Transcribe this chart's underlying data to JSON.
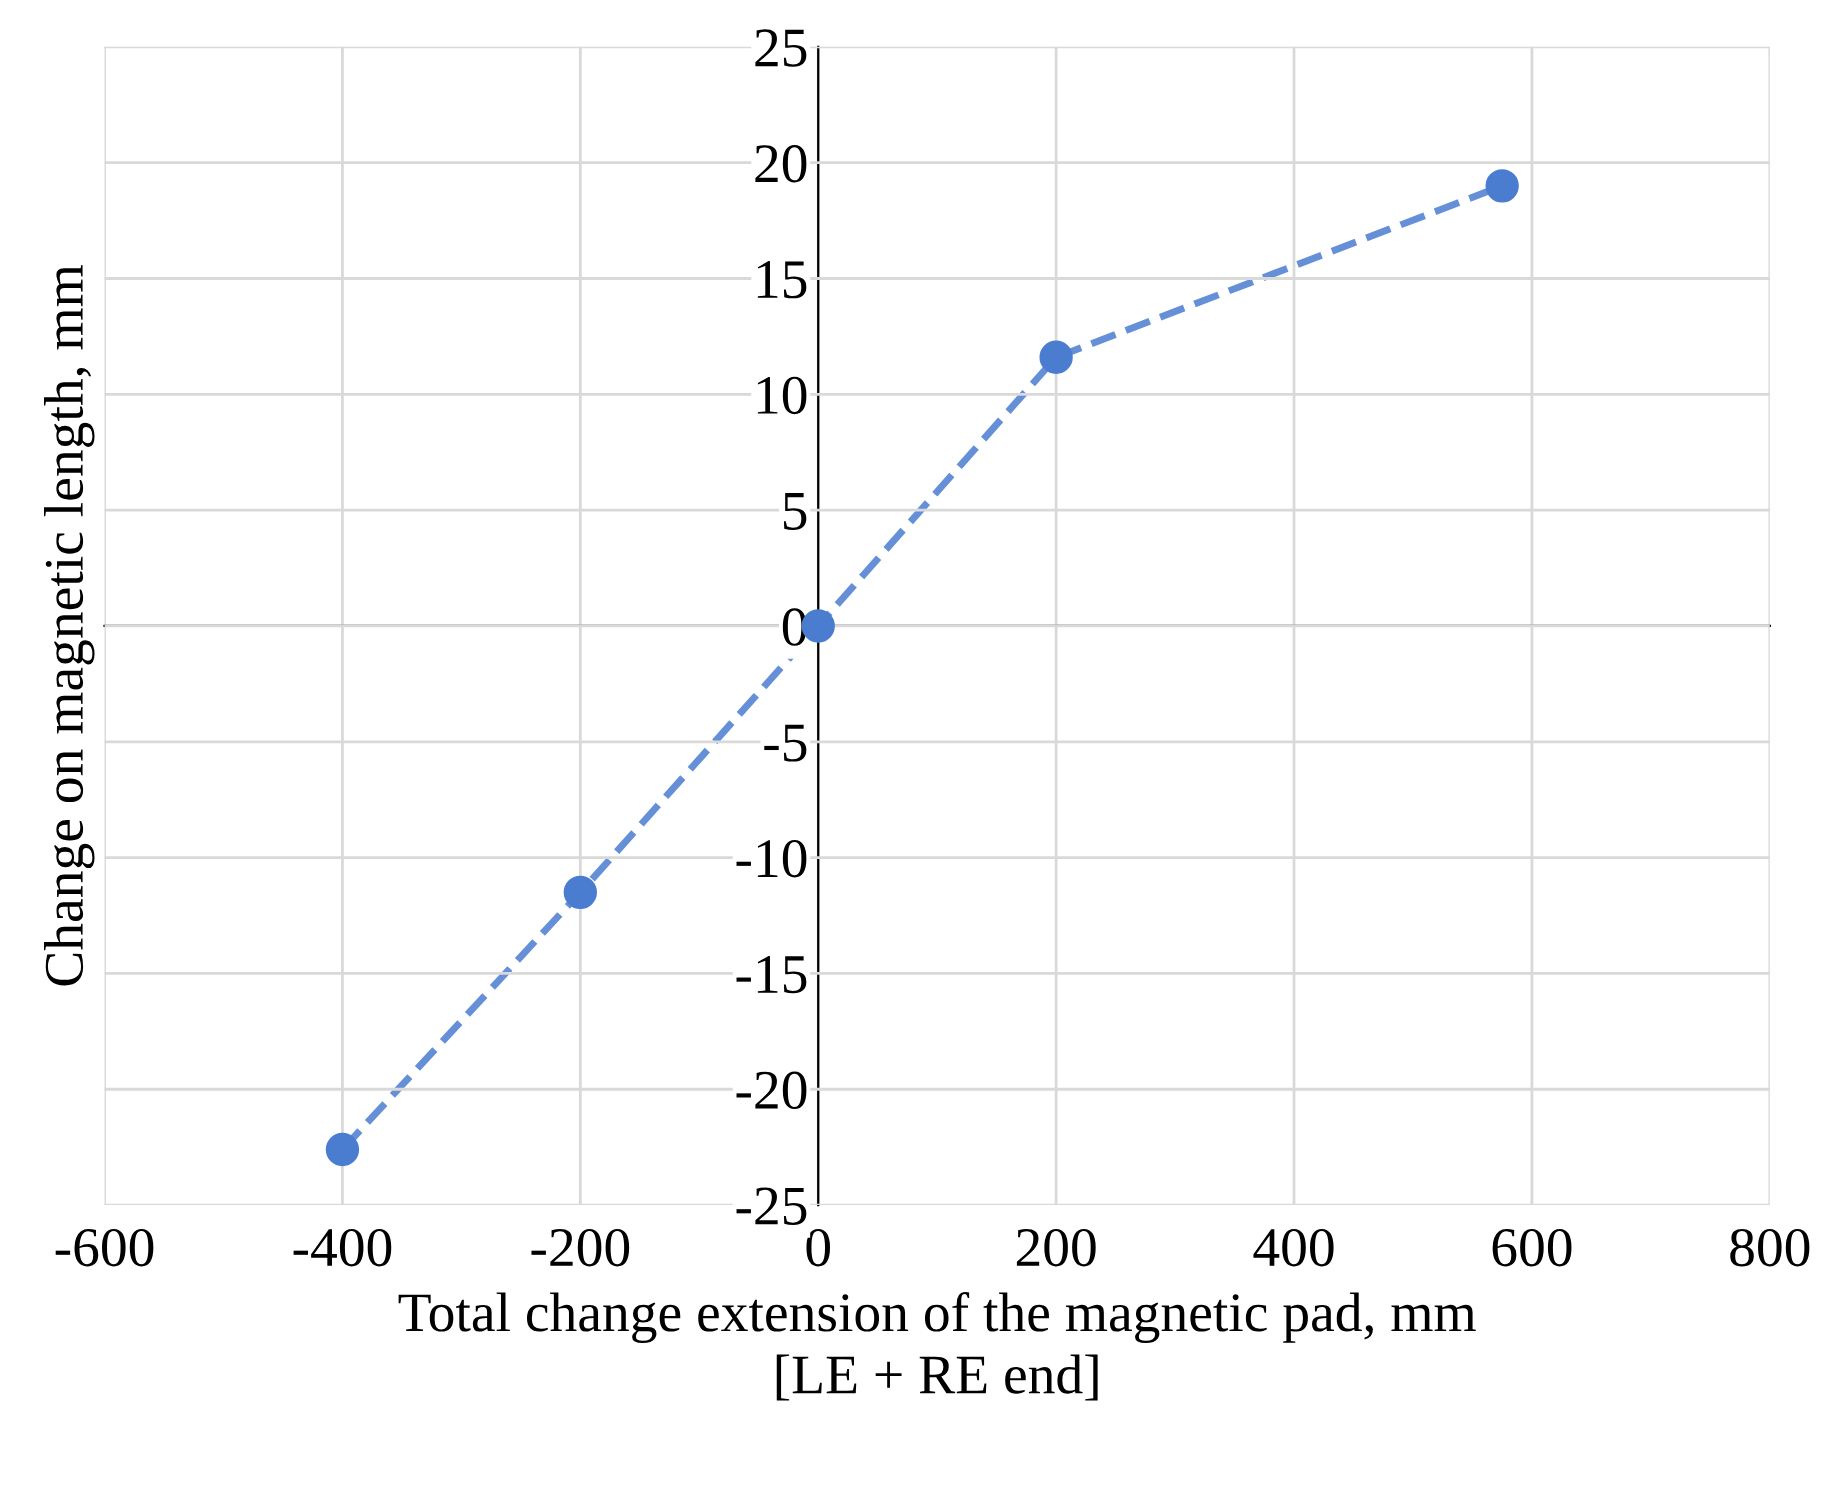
{
  "chart_data": {
    "type": "line",
    "xlabel": "Total change extension of the magnetic pad, mm\n[LE + RE end]",
    "ylabel": "Change on magnetic length, mm",
    "x": [
      -400,
      -200,
      0,
      200,
      575
    ],
    "series": [
      {
        "color": "#4a7dd0",
        "values": [
          -22.6,
          -11.5,
          0,
          11.6,
          19
        ]
      }
    ],
    "xlim": [
      -600,
      800
    ],
    "xticks": [
      -600,
      -400,
      -200,
      0,
      200,
      400,
      600,
      800
    ],
    "ylim": [
      -25,
      25
    ],
    "yticks": [
      -25,
      -20,
      -15,
      -10,
      -5,
      0,
      5,
      10,
      15,
      20,
      25
    ],
    "grid": true,
    "marker": "circle",
    "line_style": "dashed"
  }
}
